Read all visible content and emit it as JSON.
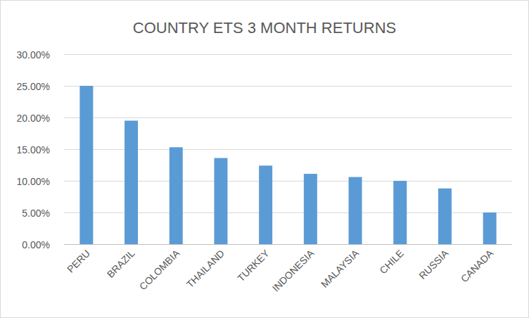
{
  "chart_data": {
    "type": "bar",
    "title": "COUNTRY ETS 3 MONTH RETURNS",
    "categories": [
      "PERU",
      "BRAZIL",
      "COLOMBIA",
      "THAILAND",
      "TURKEY",
      "INDONESIA",
      "MALAYSIA",
      "CHILE",
      "RUSSIA",
      "CANADA"
    ],
    "values": [
      25.0,
      19.5,
      15.3,
      13.6,
      12.4,
      11.1,
      10.6,
      10.0,
      8.8,
      5.0
    ],
    "color": "#5b9bd5",
    "ylim": [
      0,
      30
    ],
    "yticks": [
      {
        "value": 0,
        "label": "0.00%"
      },
      {
        "value": 5,
        "label": "5.00%"
      },
      {
        "value": 10,
        "label": "10.00%"
      },
      {
        "value": 15,
        "label": "15.00%"
      },
      {
        "value": 20,
        "label": "20.00%"
      },
      {
        "value": 25,
        "label": "25.00%"
      },
      {
        "value": 30,
        "label": "30.00%"
      }
    ],
    "grid": true
  }
}
